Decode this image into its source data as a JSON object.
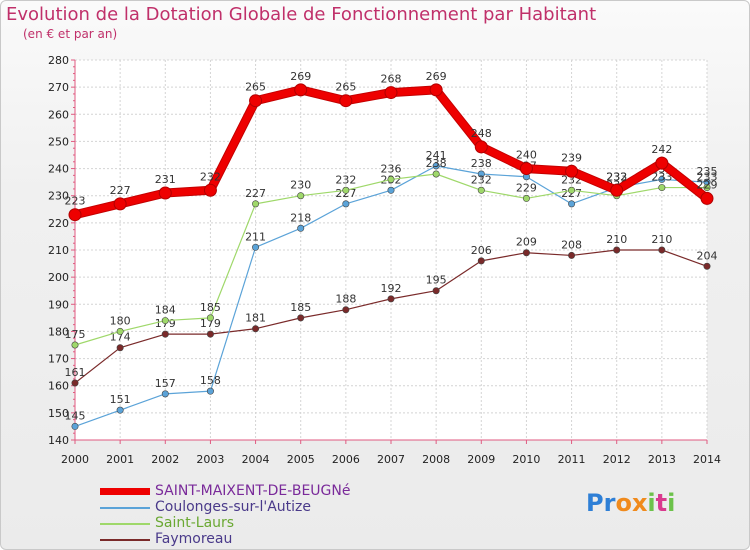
{
  "title": "Evolution de la Dotation Globale de Fonctionnement par Habitant",
  "subtitle": "(en € et par an)",
  "chart_data": {
    "type": "line",
    "title": "Evolution de la Dotation Globale de Fonctionnement par Habitant",
    "subtitle": "(en € et par an)",
    "xlabel": "",
    "ylabel": "",
    "categories": [
      "2000",
      "2001",
      "2002",
      "2003",
      "2004",
      "2005",
      "2006",
      "2007",
      "2008",
      "2009",
      "2010",
      "2011",
      "2012",
      "2013",
      "2014"
    ],
    "ylim": [
      140,
      280
    ],
    "ystep": 10,
    "grid": true,
    "series": [
      {
        "name": "Faymoreau",
        "color": "#7a2a2a",
        "values": [
          161,
          174,
          179,
          179,
          181,
          185,
          188,
          192,
          195,
          206,
          209,
          208,
          210,
          210,
          204
        ]
      },
      {
        "name": "Coulonges-sur-l'Autize",
        "color": "#5ba3d8",
        "values": [
          145,
          151,
          157,
          158,
          211,
          218,
          227,
          232,
          241,
          238,
          237,
          227,
          233,
          236,
          235
        ]
      },
      {
        "name": "Saint-Laurs",
        "color": "#9fd86a",
        "values": [
          175,
          180,
          184,
          185,
          227,
          230,
          232,
          236,
          238,
          232,
          229,
          232,
          230,
          233,
          233
        ]
      },
      {
        "name": "SAINT-MAIXENT-DE-BEUGNé",
        "color": "#ee0000",
        "values": [
          223,
          227,
          231,
          232,
          265,
          269,
          265,
          268,
          269,
          248,
          240,
          239,
          232,
          242,
          229
        ]
      }
    ]
  },
  "legend": [
    {
      "label": "SAINT-MAIXENT-DE-BEUGNé",
      "color": "#ee0000"
    },
    {
      "label": "Coulonges-sur-l'Autize",
      "color": "#5ba3d8"
    },
    {
      "label": "Saint-Laurs",
      "color": "#9fd86a"
    },
    {
      "label": "Faymoreau",
      "color": "#7a2a2a"
    }
  ],
  "logo": {
    "text": "Proxiti",
    "letters": [
      "P",
      "r",
      "o",
      "x",
      "i",
      "t",
      "i"
    ],
    "colors": [
      "#2e7fd6",
      "#2e7fd6",
      "#f08a1c",
      "#f08a1c",
      "#6cc24a",
      "#d93a8e",
      "#6cc24a"
    ]
  }
}
